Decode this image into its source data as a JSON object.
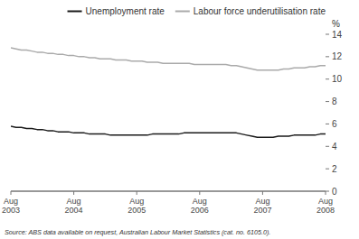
{
  "chart_data": {
    "type": "line",
    "ylabel": "%",
    "annotations": [
      "Source: ABS data available on request, Australian Labour Market Statistics (cat. no. 6105.0)."
    ],
    "categories": [
      "Aug\n2003",
      null,
      null,
      null,
      null,
      null,
      null,
      null,
      null,
      null,
      null,
      null,
      "Aug\n2004",
      null,
      null,
      null,
      null,
      null,
      null,
      null,
      null,
      null,
      null,
      null,
      "Aug\n2005",
      null,
      null,
      null,
      null,
      null,
      null,
      null,
      null,
      null,
      null,
      null,
      "Aug\n2006",
      null,
      null,
      null,
      null,
      null,
      null,
      null,
      null,
      null,
      null,
      null,
      "Aug\n2007",
      null,
      null,
      null,
      null,
      null,
      null,
      null,
      null,
      null,
      null,
      null,
      "Aug\n2008"
    ],
    "series": [
      {
        "name": "Unemployment rate",
        "color": "#1a1a1a",
        "values": [
          5.8,
          5.7,
          5.7,
          5.6,
          5.6,
          5.5,
          5.5,
          5.4,
          5.4,
          5.3,
          5.3,
          5.3,
          5.2,
          5.2,
          5.2,
          5.1,
          5.1,
          5.1,
          5.1,
          5.0,
          5.0,
          5.0,
          5.0,
          5.0,
          5.0,
          5.0,
          5.0,
          5.1,
          5.1,
          5.1,
          5.1,
          5.1,
          5.1,
          5.2,
          5.2,
          5.2,
          5.2,
          5.2,
          5.2,
          5.2,
          5.2,
          5.2,
          5.2,
          5.2,
          5.1,
          5.0,
          4.9,
          4.8,
          4.8,
          4.8,
          4.8,
          4.9,
          4.9,
          4.9,
          5.0,
          5.0,
          5.0,
          5.0,
          5.0,
          5.1,
          5.1
        ]
      },
      {
        "name": "Labour force underutilisation rate",
        "color": "#aaaaaa",
        "values": [
          12.8,
          12.7,
          12.6,
          12.6,
          12.5,
          12.4,
          12.4,
          12.3,
          12.3,
          12.2,
          12.2,
          12.1,
          12.1,
          12.0,
          12.0,
          11.9,
          11.9,
          11.8,
          11.8,
          11.8,
          11.7,
          11.7,
          11.7,
          11.6,
          11.6,
          11.6,
          11.5,
          11.5,
          11.5,
          11.4,
          11.4,
          11.4,
          11.4,
          11.4,
          11.4,
          11.3,
          11.3,
          11.3,
          11.3,
          11.3,
          11.3,
          11.3,
          11.2,
          11.2,
          11.1,
          11.0,
          10.9,
          10.8,
          10.8,
          10.8,
          10.8,
          10.8,
          10.9,
          10.9,
          11.0,
          11.0,
          11.0,
          11.1,
          11.1,
          11.2,
          11.2
        ]
      }
    ],
    "ylim": [
      0,
      14
    ],
    "yticks": [
      0,
      2,
      4,
      6,
      8,
      10,
      12,
      14
    ],
    "grid": false,
    "legend": "upper right"
  }
}
